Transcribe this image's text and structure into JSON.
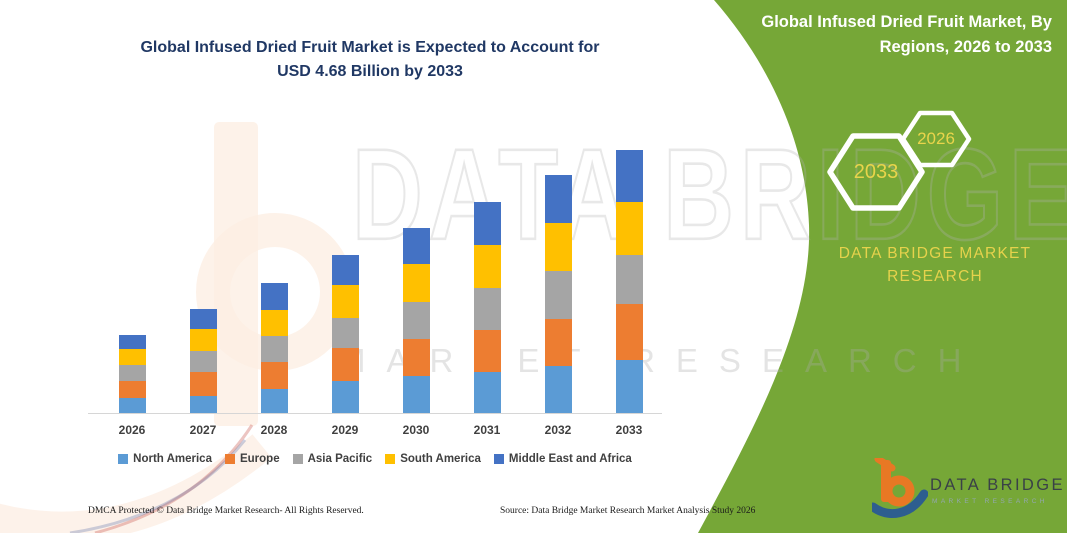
{
  "title": {
    "line1": "Global Infused Dried Fruit Market is Expected to Account for",
    "line2": "USD 4.68 Billion by 2033"
  },
  "panel": {
    "heading_line1": "Global Infused Dried Fruit Market, By",
    "heading_line2": "Regions, 2026 to 2033",
    "hexagons": [
      {
        "label": "2033"
      },
      {
        "label": "2026"
      }
    ],
    "brand_line1": "DATA BRIDGE MARKET",
    "brand_line2": "RESEARCH",
    "green_color": "#76a737",
    "hex_label_color": "#e9d44b"
  },
  "watermark": {
    "big_text": "DATA BRIDGE",
    "spaced_text": "MARKET RESEARCH"
  },
  "logo": {
    "name": "DATA BRIDGE",
    "subtitle": "MARKET RESEARCH"
  },
  "footer": {
    "left": "DMCA Protected © Data Bridge Market Research-  All Rights Reserved.",
    "right": "Source: Data Bridge Market Research  Market Analysis Study 2026"
  },
  "chart_data": {
    "type": "bar",
    "stacked": true,
    "unit": "USD Billion",
    "title": "Global Infused Dried Fruit Market is Expected to Account for USD 4.68 Billion by 2033",
    "xlabel": "",
    "ylabel": "",
    "value_axis_visible": false,
    "grid": false,
    "legend_position": "bottom",
    "ylim": [
      0,
      5
    ],
    "categories": [
      "2026",
      "2027",
      "2028",
      "2029",
      "2030",
      "2031",
      "2032",
      "2033"
    ],
    "series": [
      {
        "name": "North America",
        "color": "#5b9bd5",
        "values": [
          0.26,
          0.31,
          0.43,
          0.56,
          0.65,
          0.72,
          0.84,
          0.95
        ]
      },
      {
        "name": "Europe",
        "color": "#ed7d31",
        "values": [
          0.31,
          0.41,
          0.47,
          0.59,
          0.66,
          0.76,
          0.83,
          0.99
        ]
      },
      {
        "name": "Asia Pacific",
        "color": "#a5a5a5",
        "values": [
          0.28,
          0.39,
          0.47,
          0.54,
          0.66,
          0.74,
          0.85,
          0.87
        ]
      },
      {
        "name": "South America",
        "color": "#ffc000",
        "values": [
          0.28,
          0.39,
          0.46,
          0.59,
          0.68,
          0.76,
          0.85,
          0.93
        ]
      },
      {
        "name": "Middle East and Africa",
        "color": "#4472c4",
        "values": [
          0.26,
          0.35,
          0.48,
          0.53,
          0.64,
          0.77,
          0.86,
          0.94
        ]
      }
    ],
    "totals": [
      1.39,
      1.85,
      2.31,
      2.81,
      3.29,
      3.75,
      4.23,
      4.68
    ]
  }
}
